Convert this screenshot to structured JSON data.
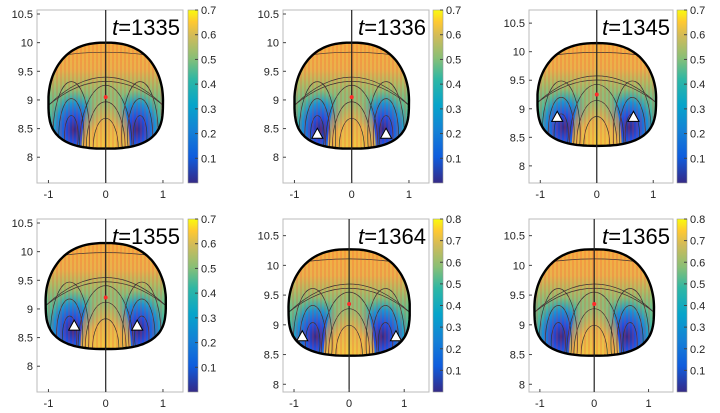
{
  "colors": {
    "yellow": "#f9fb0e",
    "orange": "#f4a941",
    "green": "#6cc08a",
    "teal": "#2db7a3",
    "blue": "#2f6df0",
    "navy": "#352a87",
    "contour": "#3a3a3a",
    "vector": "#ff2a2a",
    "outline": "#000000"
  },
  "chart_data": [
    {
      "type": "heatmap",
      "title_var": "t",
      "title_value": "=1335",
      "xlim": [
        -1.2,
        1.35
      ],
      "ylim": [
        7.55,
        10.57
      ],
      "xticks": [
        "-1",
        "0",
        "1"
      ],
      "xtick_values": [
        -1,
        0,
        1
      ],
      "yticks": [
        "8",
        "8.5",
        "9",
        "9.5",
        "10",
        "10.5"
      ],
      "ytick_values": [
        8,
        8.5,
        9,
        9.5,
        10,
        10.5
      ],
      "cbar_ticks": [
        "0.1",
        "0.2",
        "0.3",
        "0.4",
        "0.5",
        "0.6",
        "0.7"
      ],
      "cbar_max": 0.7,
      "drop": {
        "top": 10.0,
        "bottom": 8.15,
        "halfwidth": 1.0,
        "wide_y": 9.0
      },
      "markers": []
    },
    {
      "type": "heatmap",
      "title_var": "t",
      "title_value": "=1336",
      "xlim": [
        -1.2,
        1.35
      ],
      "ylim": [
        7.55,
        10.57
      ],
      "xticks": [
        "-1",
        "0",
        "1"
      ],
      "xtick_values": [
        -1,
        0,
        1
      ],
      "yticks": [
        "8",
        "8.5",
        "9",
        "9.5",
        "10",
        "10.5"
      ],
      "ytick_values": [
        8,
        8.5,
        9,
        9.5,
        10,
        10.5
      ],
      "cbar_ticks": [
        "0.1",
        "0.2",
        "0.3",
        "0.4",
        "0.5",
        "0.6",
        "0.7"
      ],
      "cbar_max": 0.7,
      "drop": {
        "top": 10.0,
        "bottom": 8.15,
        "halfwidth": 1.0,
        "wide_y": 9.0
      },
      "markers": [
        [
          -0.6,
          8.4
        ],
        [
          0.6,
          8.4
        ]
      ]
    },
    {
      "type": "heatmap",
      "title_var": "t",
      "title_value": "=1345",
      "xlim": [
        -1.2,
        1.35
      ],
      "ylim": [
        7.7,
        10.73
      ],
      "xticks": [
        "-1",
        "0",
        "1"
      ],
      "xtick_values": [
        -1,
        0,
        1
      ],
      "yticks": [
        "8",
        "8.5",
        "9",
        "9.5",
        "10",
        "10.5"
      ],
      "ytick_values": [
        8,
        8.5,
        9,
        9.5,
        10,
        10.5
      ],
      "cbar_ticks": [
        "0.1",
        "0.2",
        "0.3",
        "0.4",
        "0.5",
        "0.6",
        "0.7"
      ],
      "cbar_max": 0.7,
      "drop": {
        "top": 10.15,
        "bottom": 8.35,
        "halfwidth": 1.05,
        "wide_y": 9.2
      },
      "markers": [
        [
          -0.7,
          8.85
        ],
        [
          0.65,
          8.85
        ]
      ]
    },
    {
      "type": "heatmap",
      "title_var": "t",
      "title_value": "=1355",
      "xlim": [
        -1.2,
        1.35
      ],
      "ylim": [
        7.55,
        10.57
      ],
      "xticks": [
        "-1",
        "0",
        "1"
      ],
      "xtick_values": [
        -1,
        0,
        1
      ],
      "yticks": [
        "8",
        "8.5",
        "9",
        "9.5",
        "10",
        "10.5"
      ],
      "ytick_values": [
        8,
        8.5,
        9,
        9.5,
        10,
        10.5
      ],
      "cbar_ticks": [
        "0.1",
        "0.2",
        "0.3",
        "0.4",
        "0.5",
        "0.6",
        "0.7"
      ],
      "cbar_max": 0.7,
      "drop": {
        "top": 10.15,
        "bottom": 8.3,
        "halfwidth": 1.05,
        "wide_y": 9.15
      },
      "markers": [
        [
          -0.55,
          8.7
        ],
        [
          0.55,
          8.7
        ]
      ]
    },
    {
      "type": "heatmap",
      "title_var": "t",
      "title_value": "=1364",
      "xlim": [
        -1.2,
        1.45
      ],
      "ylim": [
        7.87,
        10.78
      ],
      "xticks": [
        "-1",
        "0",
        "1"
      ],
      "xtick_values": [
        -1,
        0,
        1
      ],
      "yticks": [
        "8",
        "8.5",
        "9",
        "9.5",
        "10",
        "10.5"
      ],
      "ytick_values": [
        8,
        8.5,
        9,
        9.5,
        10,
        10.5
      ],
      "cbar_ticks": [
        "0.1",
        "0.2",
        "0.3",
        "0.4",
        "0.5",
        "0.6",
        "0.7",
        "0.8"
      ],
      "cbar_max": 0.8,
      "drop": {
        "top": 10.27,
        "bottom": 8.48,
        "halfwidth": 1.1,
        "wide_y": 9.3
      },
      "markers": [
        [
          -0.85,
          8.8
        ],
        [
          0.85,
          8.8
        ]
      ]
    },
    {
      "type": "heatmap",
      "title_var": "t",
      "title_value": "=1365",
      "xlim": [
        -1.2,
        1.45
      ],
      "ylim": [
        7.87,
        10.78
      ],
      "xticks": [
        "-1",
        "0",
        "1"
      ],
      "xtick_values": [
        -1,
        0,
        1
      ],
      "yticks": [
        "8",
        "8.5",
        "9",
        "9.5",
        "10",
        "10.5"
      ],
      "ytick_values": [
        8,
        8.5,
        9,
        9.5,
        10,
        10.5
      ],
      "cbar_ticks": [
        "0.1",
        "0.2",
        "0.3",
        "0.4",
        "0.5",
        "0.6",
        "0.7",
        "0.8"
      ],
      "cbar_max": 0.8,
      "drop": {
        "top": 10.27,
        "bottom": 8.48,
        "halfwidth": 1.1,
        "wide_y": 9.3
      },
      "markers": []
    }
  ]
}
